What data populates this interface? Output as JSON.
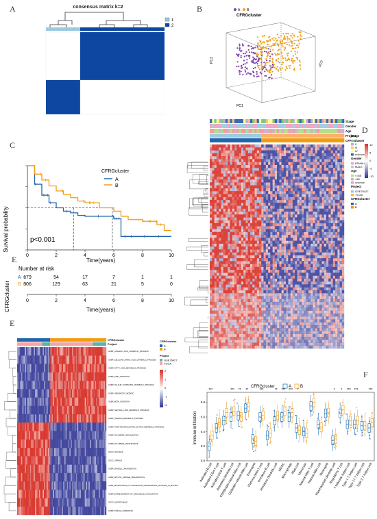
{
  "panels": {
    "A": "A",
    "B": "B",
    "C": "C",
    "D": "D",
    "E_km": "E",
    "E": "E",
    "F": "F"
  },
  "panel_a": {
    "title": "consensus matrix k=2",
    "legend": [
      "1",
      "2"
    ],
    "colors": {
      "dark": "#0d47a1",
      "light": "#9ecae1",
      "white": "#ffffff"
    }
  },
  "panel_b": {
    "title": "CFRGcluster",
    "legend": [
      "A",
      "B"
    ],
    "axis_pc1": "PC1",
    "axis_pc2": "PC2",
    "axis_pc3": "PC3",
    "colors": {
      "A": "#7b3fa6",
      "B": "#f3a21b"
    }
  },
  "panel_c": {
    "legend_title": "CFRGcluster",
    "legend_items": [
      "A",
      "B"
    ],
    "ylabel": "Survival probability",
    "xlabel": "Time(years)",
    "pvalue": "p<0.001",
    "x_ticks": [
      "0",
      "2",
      "4",
      "6",
      "8",
      "10"
    ],
    "y_ticks": [
      "0.00",
      "0.25",
      "0.50",
      "0.75",
      "1.00"
    ],
    "risk_title": "Number at risk",
    "risk_ylabel": "CFRGcluster",
    "risk_rows": [
      {
        "label": "A",
        "values": [
          "179",
          "54",
          "17",
          "7",
          "1",
          "1"
        ]
      },
      {
        "label": "B",
        "values": [
          "306",
          "129",
          "63",
          "21",
          "5",
          "0"
        ]
      }
    ],
    "risk_xlabel": "Time(years)",
    "colors": {
      "A": "#2166ac",
      "B": "#f39c12"
    }
  },
  "chart_data": [
    {
      "type": "line",
      "title": "",
      "xlabel": "Time(years)",
      "ylabel": "Survival probability",
      "xlim": [
        0,
        10
      ],
      "ylim": [
        0,
        1
      ],
      "series": [
        {
          "name": "A",
          "x": [
            0,
            0.5,
            1,
            1.5,
            2,
            2.5,
            3,
            3.5,
            4,
            5,
            6,
            6.5,
            7,
            10
          ],
          "y": [
            1.0,
            0.78,
            0.65,
            0.56,
            0.5,
            0.46,
            0.44,
            0.41,
            0.4,
            0.4,
            0.37,
            0.16,
            0.16,
            0.16
          ]
        },
        {
          "name": "B",
          "x": [
            0,
            0.5,
            1,
            1.5,
            2,
            2.5,
            3,
            3.5,
            4,
            5,
            6,
            6.5,
            7,
            8,
            9,
            9.5,
            10
          ],
          "y": [
            1.0,
            0.9,
            0.83,
            0.76,
            0.7,
            0.66,
            0.62,
            0.58,
            0.56,
            0.5,
            0.46,
            0.4,
            0.36,
            0.34,
            0.3,
            0.23,
            0.23
          ]
        }
      ]
    }
  ],
  "panel_d": {
    "rows": [
      "Stage",
      "Gender",
      "Age",
      "Project",
      "CFRGcluster"
    ],
    "legend_stage_title": "Stage",
    "legend_stage": [
      "I",
      "II",
      "III",
      "IV",
      "unknown"
    ],
    "legend_gender_title": "Gender",
    "legend_gender": [
      "FEMALE",
      "MALE"
    ],
    "legend_age_title": "Age",
    "legend_age": [
      "<=65",
      ">65",
      "unknow"
    ],
    "legend_project_title": "Project",
    "legend_project": [
      "GSE76427",
      "TCGA"
    ],
    "legend_cluster_title": "CFRGcluster",
    "legend_cluster": [
      "A",
      "B"
    ],
    "scale_ticks": [
      "10",
      "5",
      "0",
      "-5",
      "-10"
    ]
  },
  "panel_e": {
    "annotation_labels": [
      "CFRGcluster",
      "Project"
    ],
    "legend_cluster_title": "CFRGcluster",
    "legend_cluster": [
      "A",
      "B"
    ],
    "legend_project_title": "Project",
    "legend_project": [
      "GSE76427",
      "TCGA"
    ],
    "scale_ticks": [
      "2",
      "1",
      "0",
      "-1",
      "-2"
    ],
    "row_labels": [
      "GOBP_ORGANIC_ACID_CATABOLIC_PROCESS",
      "GOBP_CELLULAR_AMINO_ACID_CATABOLIC_PROCESS",
      "GOBP_FATTY_ACID_METABOLIC_PROCESS",
      "GOBP_LIPID_OXIDATION",
      "GOBP_SULFUR_COMPOUND_METABOLIC_PROCESS",
      "GOBP_XENOBIOTIC_MODIFIC",
      "GOBP_BETA_OXIDATION",
      "GOBP_NEUTRAL_LIPID_METABOLIC_PROCESS",
      "GOBP_STEROID_METABOLIC_PROCESS",
      "GOBP_POSITIVE_REGULATION_OF_RNA_METABOLIC_PROCESS",
      "GOBP_TELOMERE_ORGANIZATION",
      "GOBP_TELOMERE_MAINTENANCE",
      "GOCC_NUCLEUS",
      "GOCC_SPINDLE",
      "GOBP_SPINDLE_ORGANIZATION",
      "GOBP_MITOTIC_SPINDLE_ORGANIZATION",
      "GOBP_MICROTUBULE_CYTOSKELETON_ORGANIZATION_INVOLVED_IN_MITOSIS",
      "GOBP_ESTABLISHMENT_OF_ORGANELLE_LOCALIZATION",
      "GOCC_MICROTUBULE",
      "GOBP_TUBULE_FORMATION"
    ]
  },
  "panel_f": {
    "legend_title": "CFRGcluster",
    "legend_items": [
      "A",
      "B"
    ],
    "ylabel": "Immune infiltration",
    "y_ticks": [
      "0.0",
      "0.2",
      "0.4",
      "0.6",
      "0.8"
    ],
    "colors": {
      "A": "#2b7bba",
      "B": "#f0a32a"
    },
    "cells": [
      {
        "name": "Activated B cell",
        "sig": "***",
        "a": 0.2,
        "b": 0.35
      },
      {
        "name": "Activated CD4 T cell",
        "sig": "",
        "a": 0.45,
        "b": 0.52
      },
      {
        "name": "Activated CD8 T cell",
        "sig": "",
        "a": 0.55,
        "b": 0.66
      },
      {
        "name": "Activated dendritic cell",
        "sig": "***",
        "a": 0.6,
        "b": 0.68
      },
      {
        "name": "CD56bright natural killer cell",
        "sig": "**",
        "a": 0.62,
        "b": 0.6
      },
      {
        "name": "CD56dim natural killer cell",
        "sig": "**",
        "a": 0.72,
        "b": 0.74
      },
      {
        "name": "Eosinophil",
        "sig": "",
        "a": 0.3,
        "b": 0.27
      },
      {
        "name": "Gamma delta T cell",
        "sig": "***",
        "a": 0.6,
        "b": 0.62
      },
      {
        "name": "Immature B cell",
        "sig": "",
        "a": 0.35,
        "b": 0.38
      },
      {
        "name": "Immature dendritic cell",
        "sig": "**",
        "a": 0.55,
        "b": 0.62
      },
      {
        "name": "MDSC",
        "sig": "***",
        "a": 0.6,
        "b": 0.68
      },
      {
        "name": "Macrophage",
        "sig": "***",
        "a": 0.6,
        "b": 0.66
      },
      {
        "name": "Mast cell",
        "sig": "*",
        "a": 0.45,
        "b": 0.42
      },
      {
        "name": "Monocyte",
        "sig": "",
        "a": 0.4,
        "b": 0.38
      },
      {
        "name": "Natural killer T cell",
        "sig": "",
        "a": 0.75,
        "b": 0.8
      },
      {
        "name": "Natural killer cell",
        "sig": "",
        "a": 0.5,
        "b": 0.46
      },
      {
        "name": "Neutrophil",
        "sig": "",
        "a": 0.65,
        "b": 0.66
      },
      {
        "name": "Plasmacytoid dendritic cell",
        "sig": "*",
        "a": 0.28,
        "b": 0.3
      },
      {
        "name": "Regulatory T cell",
        "sig": "*",
        "a": 0.65,
        "b": 0.7
      },
      {
        "name": "T follicular helper cell",
        "sig": "***",
        "a": 0.5,
        "b": 0.55
      },
      {
        "name": "Type 1 T helper cell",
        "sig": "***",
        "a": 0.5,
        "b": 0.55
      },
      {
        "name": "Type 17 T helper cell",
        "sig": "",
        "a": 0.48,
        "b": 0.48
      },
      {
        "name": "Type 2 T helper cell",
        "sig": "***",
        "a": 0.45,
        "b": 0.52
      }
    ]
  }
}
